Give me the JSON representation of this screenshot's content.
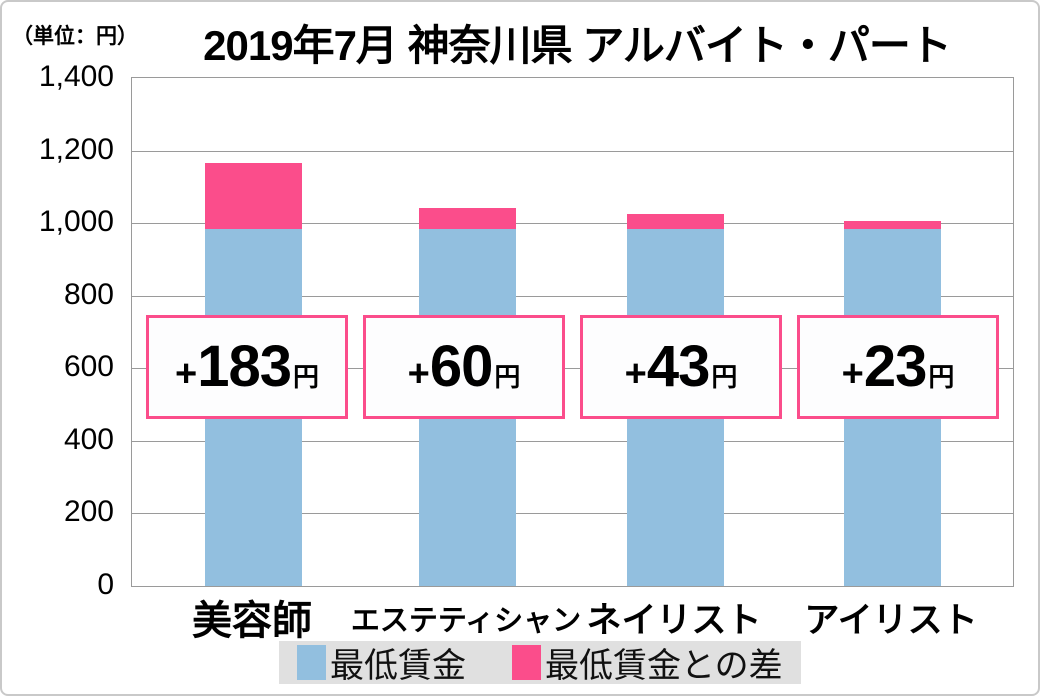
{
  "chart_data": {
    "type": "bar",
    "stacked": true,
    "title": "2019年7月 神奈川県 アルバイト・パート",
    "unit_label": "（単位：円）",
    "categories": [
      "美容師",
      "エステティシャン",
      "ネイリスト",
      "アイリスト"
    ],
    "series": [
      {
        "name": "最低賃金",
        "color": "#92BFDF",
        "values": [
          983,
          983,
          983,
          983
        ]
      },
      {
        "name": "最低賃金との差",
        "color": "#FB4D8B",
        "values": [
          183,
          60,
          43,
          23
        ]
      }
    ],
    "totals": [
      1166,
      1043,
      1026,
      1006
    ],
    "annotations": [
      {
        "prefix": "+",
        "amount": "183",
        "unit": "円"
      },
      {
        "prefix": "+",
        "amount": "60",
        "unit": "円"
      },
      {
        "prefix": "+",
        "amount": "43",
        "unit": "円"
      },
      {
        "prefix": "+",
        "amount": "23",
        "unit": "円"
      }
    ],
    "y_axis": {
      "min": 0,
      "max": 1400,
      "step": 200,
      "ticks": [
        "1,400",
        "1,200",
        "1,000",
        "800",
        "600",
        "400",
        "200",
        "0"
      ]
    },
    "x_axis": {
      "labels": [
        "美容師",
        "エステティシャン",
        "ネイリスト",
        "アイリスト"
      ]
    },
    "legend": {
      "position": "bottom",
      "entries": [
        {
          "label": "最低賃金",
          "color": "#92BFDF"
        },
        {
          "label": "最低賃金との差",
          "color": "#FB4D8B"
        }
      ]
    },
    "grid": "horizontal",
    "colors": {
      "annotation_border": "#fb4d8b",
      "grid_line": "#9a9a9a"
    }
  }
}
